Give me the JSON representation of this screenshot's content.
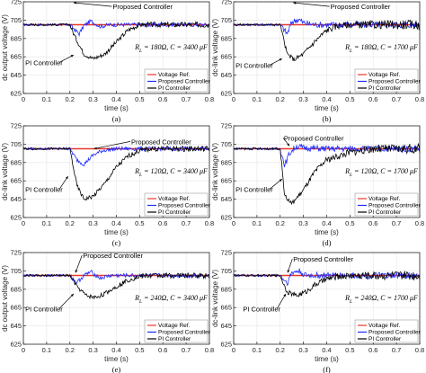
{
  "colors": {
    "ref": "#e8382b",
    "proposed": "#1f2bff",
    "pi": "#000000",
    "axis": "#262626",
    "grid": "#e6e6e6"
  },
  "chart_data": [
    {
      "type": "line",
      "panel": "(a)",
      "ylabel": "dc output voltage (V)",
      "xlabel": "time (s)",
      "xlim": [
        0,
        0.8
      ],
      "ylim": [
        625,
        725
      ],
      "yticks": [
        725,
        705,
        685,
        665,
        645,
        625
      ],
      "xticks": [
        "0",
        "0.1",
        "0.2",
        "0.3",
        "0.4",
        "0.5",
        "0.6",
        "0.7",
        "0.8"
      ],
      "param": "R_L = 180Ω, C = 3400 μF",
      "annotations": [
        "Proposed Controller",
        "PI Controller"
      ],
      "legend": [
        "Voltage Ref.",
        "Proposed Controller",
        "PI Controller"
      ],
      "legend_position": "bottom-right",
      "series": [
        {
          "name": "Voltage Ref.",
          "x": [
            0,
            0.8
          ],
          "y": [
            700,
            700
          ]
        },
        {
          "name": "Proposed Controller",
          "x": [
            0,
            0.2,
            0.24,
            0.26,
            0.29,
            0.33,
            0.37,
            0.4,
            0.8
          ],
          "y": [
            700,
            700,
            690,
            699,
            704,
            698,
            700,
            700,
            700
          ]
        },
        {
          "name": "PI Controller",
          "x": [
            0,
            0.2,
            0.22,
            0.26,
            0.3,
            0.35,
            0.4,
            0.45,
            0.5,
            0.8
          ],
          "y": [
            700,
            700,
            688,
            668,
            663,
            668,
            681,
            694,
            700,
            700
          ]
        }
      ]
    },
    {
      "type": "line",
      "panel": "(b)",
      "ylabel": "dc-link voltage (V)",
      "xlabel": "time (s)",
      "xlim": [
        0,
        0.8
      ],
      "ylim": [
        625,
        725
      ],
      "yticks": [
        725,
        705,
        685,
        665,
        645,
        625
      ],
      "xticks": [
        "0",
        "0.1",
        "0.2",
        "0.3",
        "0.4",
        "0.5",
        "0.6",
        "0.7",
        "0.8"
      ],
      "param": "R_L = 180Ω, C = 1700 μF",
      "annotations": [
        "Proposed Controller",
        "PI Controller"
      ],
      "legend": [
        "Voltage Ref.",
        "Proposed Controller",
        "PI Controller"
      ],
      "legend_position": "bottom-right",
      "series": [
        {
          "name": "Voltage Ref.",
          "x": [
            0,
            0.8
          ],
          "y": [
            700,
            700
          ]
        },
        {
          "name": "Proposed Controller",
          "x": [
            0,
            0.2,
            0.23,
            0.25,
            0.28,
            0.3,
            0.35,
            0.8
          ],
          "y": [
            700,
            700,
            690,
            703,
            706,
            702,
            700,
            700
          ]
        },
        {
          "name": "PI Controller",
          "x": [
            0,
            0.2,
            0.23,
            0.26,
            0.3,
            0.35,
            0.4,
            0.45,
            0.5,
            0.8
          ],
          "y": [
            700,
            700,
            668,
            662,
            668,
            682,
            694,
            699,
            700,
            700
          ]
        }
      ]
    },
    {
      "type": "line",
      "panel": "(c)",
      "ylabel": "dc-link voltage (V)",
      "xlabel": "time (s)",
      "xlim": [
        0,
        0.8
      ],
      "ylim": [
        625,
        725
      ],
      "yticks": [
        725,
        705,
        685,
        665,
        645,
        625
      ],
      "xticks": [
        "0",
        "0.1",
        "0.2",
        "0.3",
        "0.4",
        "0.5",
        "0.6",
        "0.7",
        "0.8"
      ],
      "param": "R_L = 120Ω, C = 3400 μF",
      "annotations": [
        "Proposed Controller",
        "PI Controller"
      ],
      "legend": [
        "Voltage Ref.",
        "Proposed Controller",
        "PI Controller"
      ],
      "legend_position": "bottom-right",
      "series": [
        {
          "name": "Voltage Ref.",
          "x": [
            0,
            0.8
          ],
          "y": [
            700,
            700
          ]
        },
        {
          "name": "Proposed Controller",
          "x": [
            0,
            0.2,
            0.23,
            0.26,
            0.3,
            0.34,
            0.4,
            0.8
          ],
          "y": [
            700,
            700,
            688,
            683,
            693,
            698,
            700,
            700
          ]
        },
        {
          "name": "PI Controller",
          "x": [
            0,
            0.2,
            0.23,
            0.26,
            0.3,
            0.35,
            0.4,
            0.45,
            0.5,
            0.55,
            0.8
          ],
          "y": [
            700,
            700,
            660,
            645,
            648,
            662,
            680,
            692,
            698,
            700,
            700
          ]
        }
      ]
    },
    {
      "type": "line",
      "panel": "(d)",
      "ylabel": "dc-link voltage (V)",
      "xlabel": "time (s)",
      "xlim": [
        0,
        0.8
      ],
      "ylim": [
        625,
        725
      ],
      "yticks": [
        725,
        705,
        685,
        665,
        645,
        625
      ],
      "xticks": [
        "0",
        "0.1",
        "0.2",
        "0.3",
        "0.4",
        "0.5",
        "0.6",
        "0.7",
        "0.8"
      ],
      "param": "R_L = 120Ω, C = 1700 μF",
      "annotations": [
        "Proposed Controller",
        "PI Controller"
      ],
      "legend": [
        "Voltage Ref.",
        "Proposed Controller",
        "PI Controller"
      ],
      "legend_position": "bottom-right",
      "series": [
        {
          "name": "Voltage Ref.",
          "x": [
            0,
            0.8
          ],
          "y": [
            700,
            700
          ]
        },
        {
          "name": "Proposed Controller",
          "x": [
            0,
            0.2,
            0.22,
            0.24,
            0.27,
            0.3,
            0.4,
            0.8
          ],
          "y": [
            700,
            700,
            682,
            695,
            703,
            701,
            700,
            700
          ]
        },
        {
          "name": "PI Controller",
          "x": [
            0,
            0.2,
            0.22,
            0.25,
            0.3,
            0.35,
            0.4,
            0.5,
            0.6,
            0.8
          ],
          "y": [
            700,
            700,
            648,
            640,
            655,
            675,
            688,
            696,
            700,
            700
          ]
        }
      ]
    },
    {
      "type": "line",
      "panel": "(e)",
      "ylabel": "dc output voltage (V)",
      "xlabel": "time (s)",
      "xlim": [
        0,
        0.8
      ],
      "ylim": [
        625,
        725
      ],
      "yticks": [
        725,
        705,
        685,
        665,
        645,
        625
      ],
      "xticks": [
        "0",
        "0.1",
        "0.2",
        "0.3",
        "0.4",
        "0.5",
        "0.6",
        "0.7",
        "0.8"
      ],
      "param": "R_L = 240Ω, C = 3400 μF",
      "annotations": [
        "Proposed Controller",
        "PI Controller"
      ],
      "legend": [
        "Voltage Ref.",
        "Proposed Controller",
        "PI Controller"
      ],
      "legend_position": "bottom-right",
      "series": [
        {
          "name": "Voltage Ref.",
          "x": [
            0,
            0.8
          ],
          "y": [
            700,
            700
          ]
        },
        {
          "name": "Proposed Controller",
          "x": [
            0,
            0.2,
            0.23,
            0.26,
            0.29,
            0.33,
            0.38,
            0.8
          ],
          "y": [
            700,
            700,
            692,
            700,
            704,
            697,
            700,
            700
          ]
        },
        {
          "name": "PI Controller",
          "x": [
            0,
            0.2,
            0.23,
            0.27,
            0.31,
            0.35,
            0.4,
            0.45,
            0.5,
            0.55,
            0.8
          ],
          "y": [
            700,
            700,
            688,
            678,
            676,
            680,
            688,
            695,
            699,
            700,
            700
          ]
        }
      ]
    },
    {
      "type": "line",
      "panel": "(f)",
      "ylabel": "dc-link voltage (V)",
      "xlabel": "time (s)",
      "xlim": [
        0,
        0.8
      ],
      "ylim": [
        625,
        725
      ],
      "yticks": [
        725,
        705,
        685,
        665,
        645,
        625
      ],
      "xticks": [
        "0",
        "0.1",
        "0.2",
        "0.3",
        "0.4",
        "0.5",
        "0.6",
        "0.7",
        "0.8"
      ],
      "param": "R_L = 240Ω, C = 1700 μF",
      "annotations": [
        "Proposed Controller",
        "PI Controller"
      ],
      "legend": [
        "Voltage Ref.",
        "Proposed Controller",
        "PI Controller"
      ],
      "legend_position": "bottom-right",
      "series": [
        {
          "name": "Voltage Ref.",
          "x": [
            0,
            0.8
          ],
          "y": [
            700,
            700
          ]
        },
        {
          "name": "Proposed Controller",
          "x": [
            0,
            0.2,
            0.23,
            0.25,
            0.28,
            0.31,
            0.35,
            0.8
          ],
          "y": [
            700,
            700,
            692,
            703,
            705,
            700,
            700,
            700
          ]
        },
        {
          "name": "PI Controller",
          "x": [
            0,
            0.2,
            0.23,
            0.27,
            0.31,
            0.35,
            0.4,
            0.45,
            0.5,
            0.8
          ],
          "y": [
            700,
            700,
            682,
            678,
            682,
            690,
            696,
            699,
            700,
            700
          ]
        }
      ]
    }
  ]
}
